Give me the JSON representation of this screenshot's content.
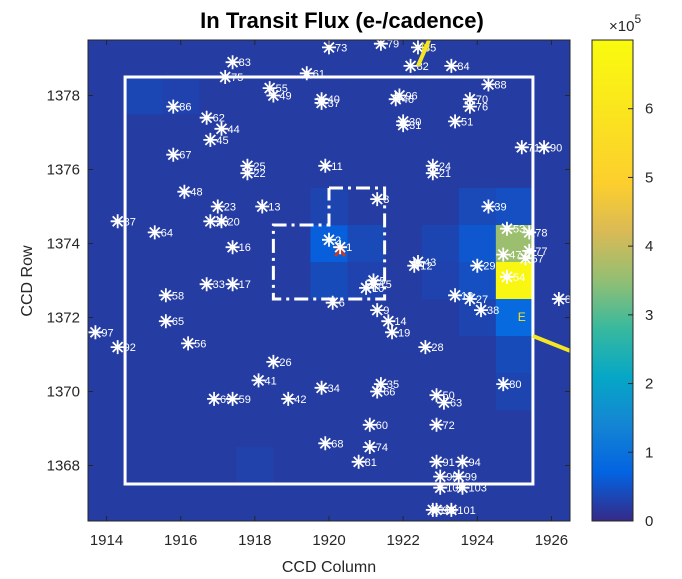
{
  "chart_data": {
    "type": "heatmap",
    "title": "In Transit Flux (e-/cadence)",
    "xlabel": "CCD Column",
    "ylabel": "CCD Row",
    "xlim": [
      1913.5,
      1926.5
    ],
    "ylim": [
      1366.5,
      1379.5
    ],
    "xticks": [
      1914,
      1916,
      1918,
      1920,
      1922,
      1924,
      1926
    ],
    "yticks": [
      1368,
      1370,
      1372,
      1374,
      1376,
      1378
    ],
    "colorbar": {
      "min": 0,
      "max": 7,
      "ticks": [
        0,
        1,
        2,
        3,
        4,
        5,
        6
      ],
      "multiplier": "×10",
      "exponent": "5",
      "colormap": "parula"
    },
    "background_value": 0.22,
    "pixels": [
      {
        "col": 1915,
        "row": 1378,
        "value": 0.36
      },
      {
        "col": 1916,
        "row": 1378,
        "value": 0.3
      },
      {
        "col": 1918,
        "row": 1368,
        "value": 0.28
      },
      {
        "col": 1920,
        "row": 1374,
        "value": 0.65
      },
      {
        "col": 1921,
        "row": 1374,
        "value": 0.38
      },
      {
        "col": 1920,
        "row": 1375,
        "value": 0.32
      },
      {
        "col": 1920,
        "row": 1373,
        "value": 0.4
      },
      {
        "col": 1921,
        "row": 1373,
        "value": 0.3
      },
      {
        "col": 1924,
        "row": 1375,
        "value": 0.38
      },
      {
        "col": 1924,
        "row": 1374,
        "value": 0.55
      },
      {
        "col": 1924,
        "row": 1373,
        "value": 0.45
      },
      {
        "col": 1924,
        "row": 1372,
        "value": 0.32
      },
      {
        "col": 1925,
        "row": 1375,
        "value": 0.45
      },
      {
        "col": 1925,
        "row": 1374,
        "value": 3.6
      },
      {
        "col": 1925,
        "row": 1373,
        "value": 6.8
      },
      {
        "col": 1925,
        "row": 1372,
        "value": 0.85
      },
      {
        "col": 1925,
        "row": 1371,
        "value": 0.4
      },
      {
        "col": 1925,
        "row": 1370,
        "value": 0.32
      },
      {
        "col": 1923,
        "row": 1374,
        "value": 0.33
      },
      {
        "col": 1923,
        "row": 1373,
        "value": 0.3
      }
    ],
    "aperture_box": {
      "col_min": 1914.5,
      "col_max": 1925.5,
      "row_min": 1367.5,
      "row_max": 1378.5
    },
    "target_mask_outline": [
      [
        1920.0,
        1375.5
      ],
      [
        1921.5,
        1375.5
      ],
      [
        1921.5,
        1372.5
      ],
      [
        1918.5,
        1372.5
      ],
      [
        1918.5,
        1374.5
      ],
      [
        1920.0,
        1374.5
      ],
      [
        1920.0,
        1375.5
      ]
    ],
    "target_marker": {
      "col": 1920.3,
      "row": 1373.8
    },
    "compass": {
      "north": {
        "from": [
          1922.4,
          1378.8
        ],
        "to": [
          1922.7,
          1379.5
        ],
        "label": "N",
        "label_at": [
          1922.6,
          1379.2
        ]
      },
      "east": {
        "from": [
          1925.5,
          1371.5
        ],
        "to": [
          1926.5,
          1371.1
        ],
        "label": "E",
        "label_at": [
          1925.2,
          1371.9
        ]
      }
    },
    "stars": [
      {
        "label": "1",
        "x": 1920.3,
        "y": 1373.9
      },
      {
        "label": "2",
        "x": 1920.0,
        "y": 1374.1
      },
      {
        "label": "3",
        "x": 1921.3,
        "y": 1375.2
      },
      {
        "label": "5",
        "x": 1921.2,
        "y": 1373.0
      },
      {
        "label": "6",
        "x": 1920.1,
        "y": 1372.4
      },
      {
        "label": "9",
        "x": 1921.3,
        "y": 1372.2
      },
      {
        "label": "10",
        "x": 1921.0,
        "y": 1372.8
      },
      {
        "label": "11",
        "x": 1919.9,
        "y": 1376.1
      },
      {
        "label": "13",
        "x": 1918.2,
        "y": 1375.0
      },
      {
        "label": "14",
        "x": 1921.6,
        "y": 1371.9
      },
      {
        "label": "16",
        "x": 1917.4,
        "y": 1373.9
      },
      {
        "label": "17",
        "x": 1917.4,
        "y": 1372.9
      },
      {
        "label": "18",
        "x": 1923.4,
        "y": 1372.6
      },
      {
        "label": "19",
        "x": 1921.7,
        "y": 1371.6
      },
      {
        "label": "20",
        "x": 1917.1,
        "y": 1374.6
      },
      {
        "label": "21",
        "x": 1922.8,
        "y": 1375.9
      },
      {
        "label": "22",
        "x": 1917.8,
        "y": 1375.9
      },
      {
        "label": "23",
        "x": 1917.0,
        "y": 1375.0
      },
      {
        "label": "24",
        "x": 1922.8,
        "y": 1376.1
      },
      {
        "label": "25",
        "x": 1917.8,
        "y": 1376.1
      },
      {
        "label": "26",
        "x": 1918.5,
        "y": 1370.8
      },
      {
        "label": "27",
        "x": 1923.8,
        "y": 1372.5
      },
      {
        "label": "28",
        "x": 1922.6,
        "y": 1371.2
      },
      {
        "label": "29",
        "x": 1924.0,
        "y": 1373.4
      },
      {
        "label": "33",
        "x": 1916.7,
        "y": 1372.9
      },
      {
        "label": "34",
        "x": 1919.8,
        "y": 1370.1
      },
      {
        "label": "35",
        "x": 1921.4,
        "y": 1370.2
      },
      {
        "label": "36",
        "x": 1916.8,
        "y": 1374.6
      },
      {
        "label": "38",
        "x": 1924.1,
        "y": 1372.2
      },
      {
        "label": "39",
        "x": 1924.3,
        "y": 1375.0
      },
      {
        "label": "41",
        "x": 1918.1,
        "y": 1370.3
      },
      {
        "label": "42",
        "x": 1918.9,
        "y": 1369.8
      },
      {
        "label": "44",
        "x": 1917.1,
        "y": 1377.1
      },
      {
        "label": "45",
        "x": 1916.8,
        "y": 1376.8
      },
      {
        "label": "47",
        "x": 1924.7,
        "y": 1373.7
      },
      {
        "label": "48",
        "x": 1916.1,
        "y": 1375.4
      },
      {
        "label": "49",
        "x": 1918.5,
        "y": 1378.0
      },
      {
        "label": "50",
        "x": 1922.9,
        "y": 1369.9
      },
      {
        "label": "51",
        "x": 1923.4,
        "y": 1377.3
      },
      {
        "label": "53",
        "x": 1924.8,
        "y": 1374.4
      },
      {
        "label": "54",
        "x": 1924.8,
        "y": 1373.1
      },
      {
        "label": "55",
        "x": 1918.4,
        "y": 1378.2
      },
      {
        "label": "56",
        "x": 1916.2,
        "y": 1371.3
      },
      {
        "label": "57",
        "x": 1925.3,
        "y": 1373.6
      },
      {
        "label": "58",
        "x": 1915.6,
        "y": 1372.6
      },
      {
        "label": "59",
        "x": 1917.4,
        "y": 1369.8
      },
      {
        "label": "60",
        "x": 1921.1,
        "y": 1369.1
      },
      {
        "label": "61",
        "x": 1919.4,
        "y": 1378.6
      },
      {
        "label": "62",
        "x": 1916.7,
        "y": 1377.4
      },
      {
        "label": "63",
        "x": 1923.1,
        "y": 1369.7
      },
      {
        "label": "64",
        "x": 1915.3,
        "y": 1374.3
      },
      {
        "label": "65",
        "x": 1915.6,
        "y": 1371.9
      },
      {
        "label": "66",
        "x": 1921.3,
        "y": 1370.0
      },
      {
        "label": "67",
        "x": 1915.8,
        "y": 1376.4
      },
      {
        "label": "68",
        "x": 1919.9,
        "y": 1368.6
      },
      {
        "label": "69",
        "x": 1916.9,
        "y": 1369.8
      },
      {
        "label": "70",
        "x": 1923.8,
        "y": 1377.9
      },
      {
        "label": "72",
        "x": 1922.9,
        "y": 1369.1
      },
      {
        "label": "73",
        "x": 1920.0,
        "y": 1379.3
      },
      {
        "label": "74",
        "x": 1921.1,
        "y": 1368.5
      },
      {
        "label": "75",
        "x": 1917.2,
        "y": 1378.5
      },
      {
        "label": "77",
        "x": 1925.4,
        "y": 1373.8
      },
      {
        "label": "78",
        "x": 1925.4,
        "y": 1374.3
      },
      {
        "label": "79",
        "x": 1921.4,
        "y": 1379.4
      },
      {
        "label": "80",
        "x": 1924.7,
        "y": 1370.2
      },
      {
        "label": "81",
        "x": 1920.8,
        "y": 1368.1
      },
      {
        "label": "82",
        "x": 1922.2,
        "y": 1378.8
      },
      {
        "label": "83",
        "x": 1917.4,
        "y": 1378.9
      },
      {
        "label": "84",
        "x": 1923.3,
        "y": 1378.8
      },
      {
        "label": "85",
        "x": 1922.4,
        "y": 1379.3
      },
      {
        "label": "86",
        "x": 1915.8,
        "y": 1377.7
      },
      {
        "label": "87",
        "x": 1914.3,
        "y": 1374.6
      },
      {
        "label": "88",
        "x": 1924.3,
        "y": 1378.3
      },
      {
        "label": "89",
        "x": 1926.2,
        "y": 1372.5
      },
      {
        "label": "90",
        "x": 1925.8,
        "y": 1376.6
      },
      {
        "label": "91",
        "x": 1922.9,
        "y": 1368.1
      },
      {
        "label": "92",
        "x": 1914.3,
        "y": 1371.2
      },
      {
        "label": "94",
        "x": 1923.6,
        "y": 1368.1
      },
      {
        "label": "95",
        "x": 1923.0,
        "y": 1367.7
      },
      {
        "label": "97",
        "x": 1913.7,
        "y": 1371.6
      },
      {
        "label": "99",
        "x": 1923.5,
        "y": 1367.7
      },
      {
        "label": "100",
        "x": 1923.0,
        "y": 1367.4
      },
      {
        "label": "103",
        "x": 1923.6,
        "y": 1367.4
      },
      {
        "label": "109",
        "x": 1922.8,
        "y": 1366.8
      },
      {
        "label": "40",
        "x": 1919.8,
        "y": 1377.9
      },
      {
        "label": "37",
        "x": 1919.8,
        "y": 1377.8
      },
      {
        "label": "46",
        "x": 1921.8,
        "y": 1377.9
      },
      {
        "label": "96",
        "x": 1921.9,
        "y": 1378.0
      },
      {
        "label": "30",
        "x": 1922.0,
        "y": 1377.3
      },
      {
        "label": "31",
        "x": 1922.0,
        "y": 1377.2
      },
      {
        "label": "76",
        "x": 1923.8,
        "y": 1377.7
      },
      {
        "label": "15",
        "x": 1921.2,
        "y": 1372.9
      },
      {
        "label": "12",
        "x": 1922.3,
        "y": 1373.4
      },
      {
        "label": "43",
        "x": 1922.4,
        "y": 1373.5
      },
      {
        "label": "71",
        "x": 1925.2,
        "y": 1376.6
      },
      {
        "label": "98",
        "x": 1922.9,
        "y": 1366.8
      },
      {
        "label": "101",
        "x": 1923.3,
        "y": 1366.8
      }
    ]
  }
}
